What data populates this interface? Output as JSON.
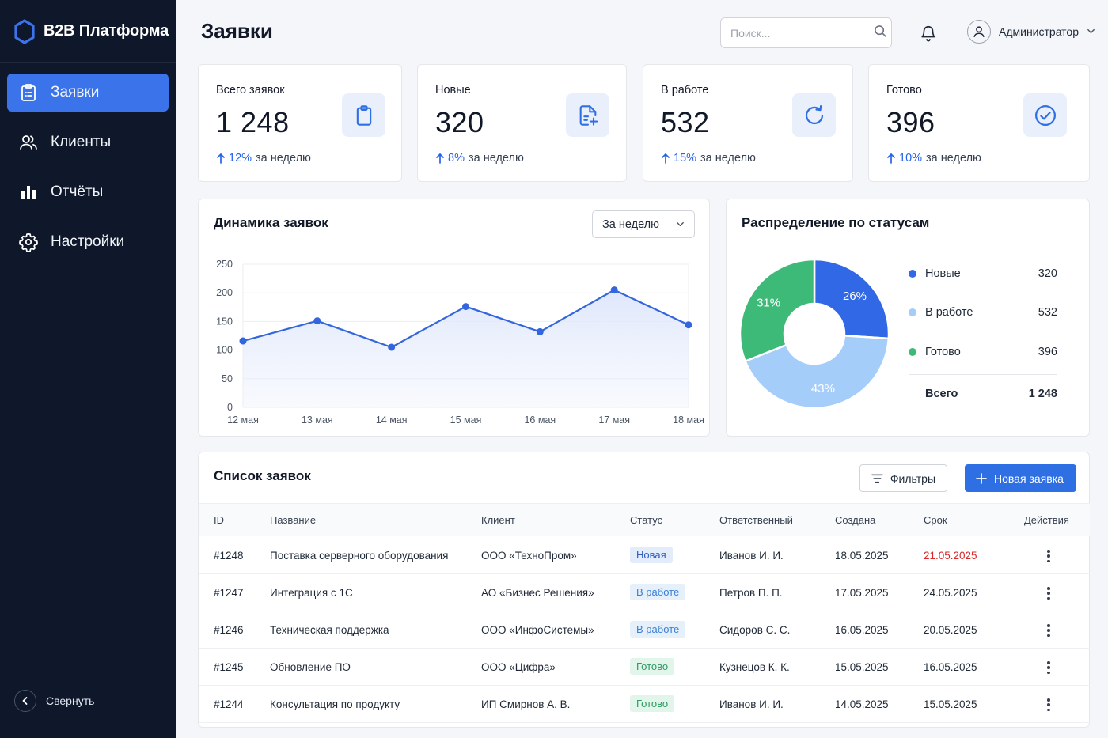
{
  "brand": {
    "name": "B2B Платформа"
  },
  "sidebar": {
    "items": [
      {
        "label": "Заявки",
        "icon": "clipboard-icon",
        "active": true
      },
      {
        "label": "Клиенты",
        "icon": "users-icon"
      },
      {
        "label": "Отчёты",
        "icon": "bar-chart-icon"
      },
      {
        "label": "Настройки",
        "icon": "gear-icon"
      }
    ],
    "collapse_label": "Свернуть"
  },
  "header": {
    "title": "Заявки",
    "search_placeholder": "Поиск...",
    "user_name": "Администратор"
  },
  "stats": [
    {
      "label": "Всего заявок",
      "value": "1 248",
      "pct": "12%",
      "period": "за неделю",
      "icon": "clipboard-icon"
    },
    {
      "label": "Новые",
      "value": "320",
      "pct": "8%",
      "period": "за неделю",
      "icon": "file-plus-icon"
    },
    {
      "label": "В работе",
      "value": "532",
      "pct": "15%",
      "period": "за неделю",
      "icon": "refresh-icon"
    },
    {
      "label": "Готово",
      "value": "396",
      "pct": "10%",
      "period": "за неделю",
      "icon": "check-circle-icon"
    }
  ],
  "dynamics": {
    "title": "Динамика заявок",
    "period_select": "За неделю"
  },
  "distribution": {
    "title": "Распределение по статусам",
    "legend": [
      {
        "label": "Новые",
        "value": "320",
        "color": "#3068e6"
      },
      {
        "label": "В работе",
        "value": "532",
        "color": "#a4cdfa"
      },
      {
        "label": "Готово",
        "value": "396",
        "color": "#3dba77"
      }
    ],
    "total_label": "Всего",
    "total_value": "1 248"
  },
  "chart_data": [
    {
      "type": "area",
      "title": "Динамика заявок",
      "categories": [
        "12 мая",
        "13 мая",
        "14 мая",
        "15 мая",
        "16 мая",
        "17 мая",
        "18 мая"
      ],
      "values": [
        116,
        151,
        105,
        176,
        132,
        205,
        144
      ],
      "ylim": [
        0,
        250
      ],
      "yticks": [
        0,
        50,
        100,
        150,
        200,
        250
      ],
      "grid": true,
      "color": "#3366dd"
    },
    {
      "type": "pie",
      "title": "Распределение по статусам",
      "categories": [
        "Новые",
        "В работе",
        "Готово"
      ],
      "values": [
        26,
        43,
        31
      ],
      "labels": [
        "26%",
        "43%",
        "31%"
      ],
      "colors": [
        "#3068e6",
        "#a4cdfa",
        "#3dba77"
      ],
      "donut": true
    }
  ],
  "table": {
    "title": "Список заявок",
    "filter_label": "Фильтры",
    "new_label": "Новая заявка",
    "columns": [
      "ID",
      "Название",
      "Клиент",
      "Статус",
      "Ответственный",
      "Создана",
      "Срок",
      "Действия"
    ],
    "rows": [
      {
        "id": "#1248",
        "name": "Поставка серверного оборудования",
        "client": "ООО «ТехноПром»",
        "status": "Новая",
        "status_type": "new",
        "owner": "Иванов И. И.",
        "created": "18.05.2025",
        "due": "21.05.2025",
        "overdue": true
      },
      {
        "id": "#1247",
        "name": "Интеграция с 1С",
        "client": "АО «Бизнес Решения»",
        "status": "В работе",
        "status_type": "work",
        "owner": "Петров П. П.",
        "created": "17.05.2025",
        "due": "24.05.2025",
        "overdue": false
      },
      {
        "id": "#1246",
        "name": "Техническая поддержка",
        "client": "ООО «ИнфоСистемы»",
        "status": "В работе",
        "status_type": "work",
        "owner": "Сидоров С. С.",
        "created": "16.05.2025",
        "due": "20.05.2025",
        "overdue": false
      },
      {
        "id": "#1245",
        "name": "Обновление ПО",
        "client": "ООО «Цифра»",
        "status": "Готово",
        "status_type": "done",
        "owner": "Кузнецов К. К.",
        "created": "15.05.2025",
        "due": "16.05.2025",
        "overdue": false
      },
      {
        "id": "#1244",
        "name": "Консультация по продукту",
        "client": "ИП Смирнов А. В.",
        "status": "Готово",
        "status_type": "done",
        "owner": "Иванов И. И.",
        "created": "14.05.2025",
        "due": "15.05.2025",
        "overdue": false
      }
    ]
  }
}
